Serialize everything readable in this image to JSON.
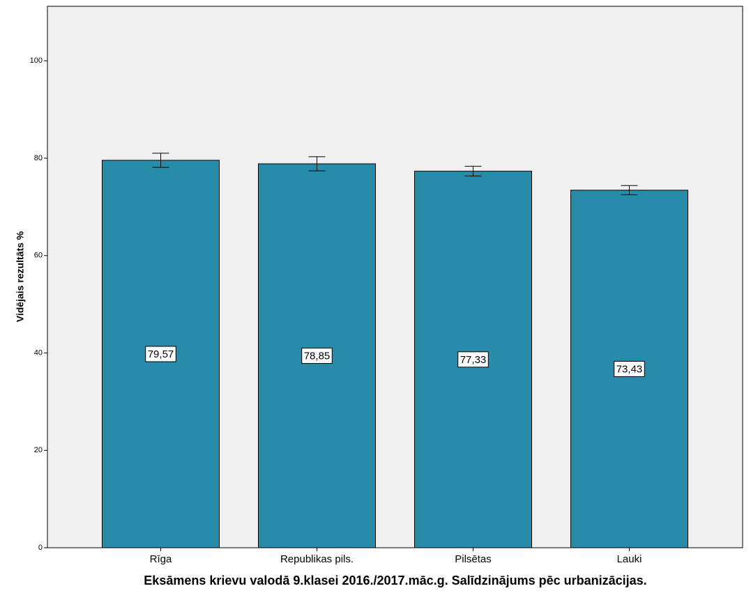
{
  "chart_data": {
    "type": "bar",
    "x_label": "Eksāmens krievu valodā 9.klasei 2016./2017.māc.g. Salīdzinājums pēc urbanizācijas.",
    "y_label": "Vidējais rezultāts %",
    "categories": [
      "Rīga",
      "Republikas pils.",
      "Pilsētas",
      "Lauki"
    ],
    "values": [
      79.57,
      78.85,
      77.33,
      73.43
    ],
    "value_labels": [
      "79,57",
      "78,85",
      "77,33",
      "73,43"
    ],
    "errors": [
      1.45,
      1.45,
      1.0,
      0.95
    ],
    "color": "#268caa",
    "ylim": [
      0,
      111.2
    ],
    "yticks": [
      0,
      20,
      40,
      60,
      80,
      100
    ]
  }
}
